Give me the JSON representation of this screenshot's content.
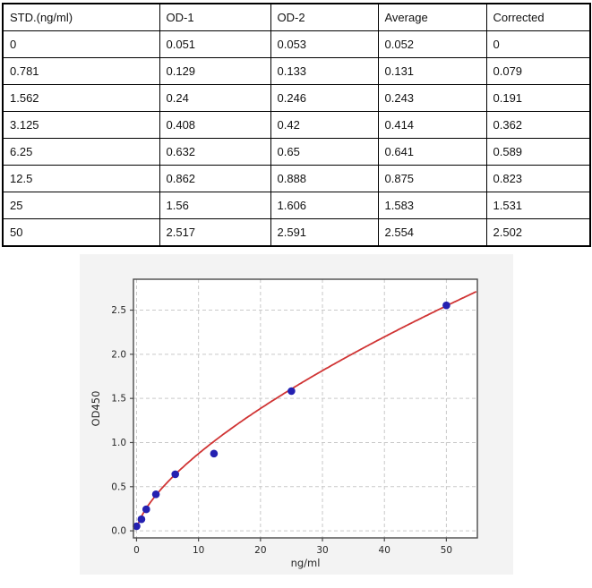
{
  "table": {
    "headers": [
      "STD.(ng/ml)",
      "OD-1",
      "OD-2",
      "Average",
      "Corrected"
    ],
    "rows": [
      [
        "0",
        "0.051",
        "0.053",
        "0.052",
        "0"
      ],
      [
        "0.781",
        "0.129",
        "0.133",
        "0.131",
        "0.079"
      ],
      [
        "1.562",
        "0.24",
        "0.246",
        "0.243",
        "0.191"
      ],
      [
        "3.125",
        "0.408",
        "0.42",
        "0.414",
        "0.362"
      ],
      [
        "6.25",
        "0.632",
        "0.65",
        "0.641",
        "0.589"
      ],
      [
        "12.5",
        "0.862",
        "0.888",
        "0.875",
        "0.823"
      ],
      [
        "25",
        "1.56",
        "1.606",
        "1.583",
        "1.531"
      ],
      [
        "50",
        "2.517",
        "2.591",
        "2.554",
        "2.502"
      ]
    ]
  },
  "chart_data": {
    "type": "scatter",
    "title": "",
    "xlabel": "ng/ml",
    "ylabel": "OD450",
    "x": [
      0,
      0.781,
      1.562,
      3.125,
      6.25,
      12.5,
      25,
      50
    ],
    "y": [
      0.052,
      0.131,
      0.243,
      0.414,
      0.641,
      0.875,
      1.583,
      2.554
    ],
    "fit_curve": {
      "type": "power",
      "a": 0.189,
      "b": 0.665
    },
    "xticks": [
      0,
      10,
      20,
      30,
      40,
      50
    ],
    "yticks": [
      0.0,
      0.5,
      1.0,
      1.5,
      2.0,
      2.5
    ],
    "xlim": [
      -0.5,
      55
    ],
    "ylim": [
      -0.08,
      2.85
    ],
    "grid": true,
    "legend": "none",
    "colors": {
      "point": "#2420b1",
      "curve": "#d03434",
      "grid": "#c9c9c9",
      "frame": "#4a4a4a",
      "tick_label": "#262626",
      "figure_bg": "#f3f3f3",
      "plot_bg": "#ffffff"
    }
  }
}
